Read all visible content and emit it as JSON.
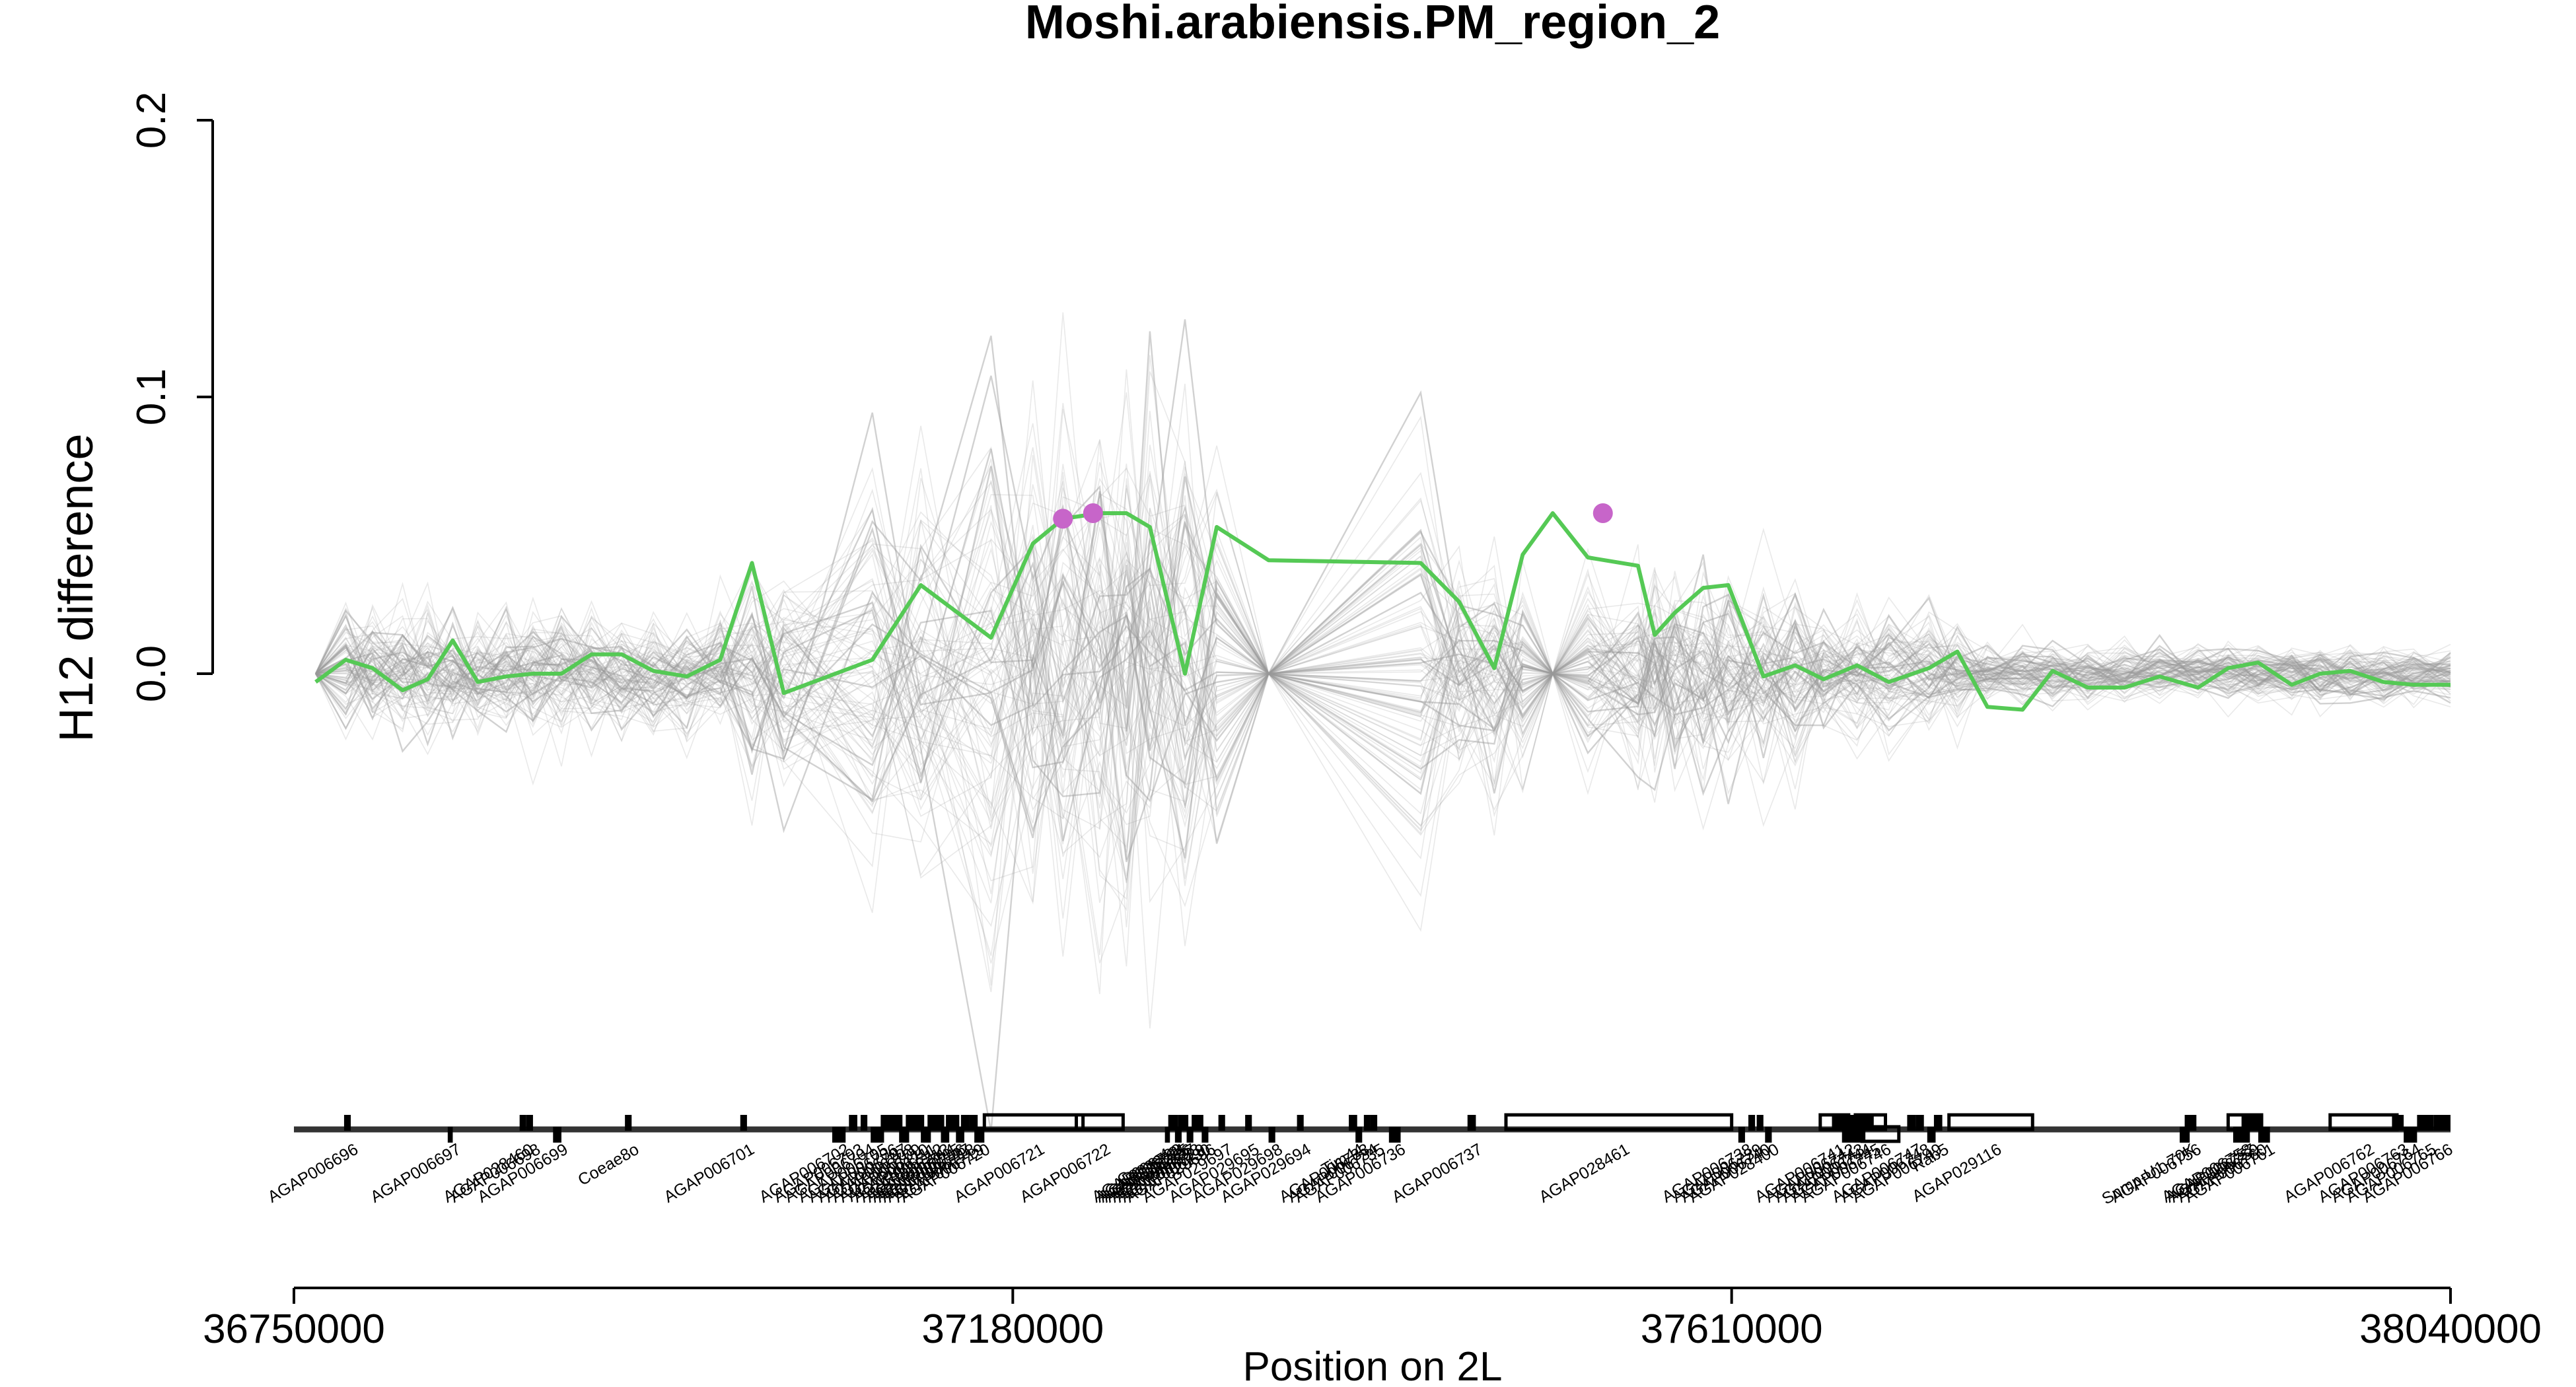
{
  "chart_data": {
    "type": "line",
    "title": "Moshi.arabiensis.PM_region_2",
    "xlabel": "Position on 2L",
    "ylabel": "H12 difference",
    "xlim": [
      36750000,
      38040000
    ],
    "ylim": [
      -0.13,
      0.2
    ],
    "x_ticks": [
      "36750000",
      "37180000",
      "37610000",
      "38040000"
    ],
    "y_ticks": [
      "0.0",
      "0.1",
      "0.2"
    ],
    "grid": false,
    "legend": "none",
    "colors": {
      "observed_line": "#55c955",
      "permutation_lines": "#9a9a9a",
      "peak_points": "#c765c9",
      "axis": "#000000",
      "gene_track": "#000000"
    },
    "series": [
      {
        "x": [
          36763000,
          36781000,
          36797000,
          36815000,
          36830000,
          36845000,
          36860000,
          36877000,
          36893000,
          36910000,
          36928000,
          36946000,
          36965000,
          36985000,
          37005000,
          37024000,
          37043000,
          37096000,
          37125000,
          37167000,
          37192000,
          37210000,
          37232000,
          37248000,
          37262000,
          37283000,
          37302000,
          37333000,
          37424000,
          37447000,
          37468000,
          37485000,
          37503000,
          37524000,
          37554000,
          37564000,
          37576000,
          37593000,
          37608000,
          37629000,
          37648000,
          37665000,
          37685000,
          37704000,
          37728000,
          37745000,
          37763000,
          37784000,
          37802000,
          37823000,
          37845000,
          37866000,
          37889000,
          37907000,
          37925000,
          37945000,
          37962000,
          37980000,
          38000000,
          38018000,
          38040000
        ],
        "values": [
          -0.003,
          0.005,
          0.002,
          -0.006,
          -0.002,
          0.012,
          -0.003,
          -0.001,
          0.0,
          0.0,
          0.007,
          0.007,
          0.001,
          -0.001,
          0.005,
          0.04,
          -0.007,
          0.005,
          0.032,
          0.013,
          0.047,
          0.056,
          0.058,
          0.058,
          0.053,
          0.0,
          0.053,
          0.041,
          0.04,
          0.026,
          0.002,
          0.043,
          0.058,
          0.042,
          0.039,
          0.014,
          0.022,
          0.031,
          0.032,
          -0.001,
          0.003,
          -0.002,
          0.003,
          -0.003,
          0.002,
          0.008,
          -0.012,
          -0.013,
          0.001,
          -0.005,
          -0.005,
          -0.001,
          -0.005,
          0.002,
          0.004,
          -0.004,
          0.0,
          0.001,
          -0.003,
          -0.004,
          -0.004
        ]
      }
    ],
    "peaks": [
      {
        "x": 37210000,
        "y": 0.056
      },
      {
        "x": 37228000,
        "y": 0.058
      },
      {
        "x": 37533000,
        "y": 0.058
      }
    ],
    "permutations": {
      "count": 90,
      "pinch_points_x": [
        36763000,
        37072000,
        37148000,
        37333000,
        37503000,
        37752000
      ],
      "extrema_hint": {
        "min": -0.128,
        "max": 0.211
      }
    },
    "genes": [
      {
        "name": "AGAP006696",
        "start": 36780000,
        "end": 36784000
      },
      {
        "name": "AGAP006697",
        "start": 36842000,
        "end": 36845000
      },
      {
        "name": "AGAP028460",
        "start": 36885000,
        "end": 36889000
      },
      {
        "name": "AGAP006698",
        "start": 36889000,
        "end": 36893000
      },
      {
        "name": "AGAP006699",
        "start": 36905000,
        "end": 36910000
      },
      {
        "name": "Coeae8o",
        "start": 36948000,
        "end": 36952000
      },
      {
        "name": "AGAP006701",
        "start": 37017000,
        "end": 37021000
      },
      {
        "name": "AGAP006702",
        "start": 37072000,
        "end": 37080000
      },
      {
        "name": "AGAP006703",
        "start": 37082000,
        "end": 37087000
      },
      {
        "name": "AGAP006704",
        "start": 37089000,
        "end": 37093000
      },
      {
        "name": "AGAP006705",
        "start": 37095000,
        "end": 37103000
      },
      {
        "name": "AGAP006706",
        "start": 37101000,
        "end": 37109000
      },
      {
        "name": "AGAP006707",
        "start": 37107000,
        "end": 37114000
      },
      {
        "name": "AGAP006708",
        "start": 37112000,
        "end": 37118000
      },
      {
        "name": "AGAP006709",
        "start": 37116000,
        "end": 37122000
      },
      {
        "name": "AGAP006710",
        "start": 37120000,
        "end": 37127000
      },
      {
        "name": "AGAP006711",
        "start": 37125000,
        "end": 37131000
      },
      {
        "name": "AGAP006712",
        "start": 37129000,
        "end": 37135000
      },
      {
        "name": "AGAP006713",
        "start": 37133000,
        "end": 37139000
      },
      {
        "name": "AGAP006714",
        "start": 37137000,
        "end": 37142000
      },
      {
        "name": "AGAP006715",
        "start": 37140000,
        "end": 37145000
      },
      {
        "name": "AGAP006716",
        "start": 37143000,
        "end": 37148000
      },
      {
        "name": "AGAP006717",
        "start": 37146000,
        "end": 37151000
      },
      {
        "name": "AGAP006718",
        "start": 37149000,
        "end": 37154000
      },
      {
        "name": "AGAP006719",
        "start": 37154000,
        "end": 37159000
      },
      {
        "name": "AGAP006720",
        "start": 37157000,
        "end": 37163000
      },
      {
        "name": "AGAP006721",
        "start": 37163000,
        "end": 37222000
      },
      {
        "name": "AGAP006722",
        "start": 37218000,
        "end": 37246000
      },
      {
        "name": "Coeae4o",
        "start": 37271000,
        "end": 37274000
      },
      {
        "name": "AGAP006723",
        "start": 37273000,
        "end": 37277000
      },
      {
        "name": "AGAP006724",
        "start": 37275000,
        "end": 37279000
      },
      {
        "name": "AGAP006725",
        "start": 37277000,
        "end": 37281000
      },
      {
        "name": "AGAP006726",
        "start": 37279000,
        "end": 37283000
      },
      {
        "name": "AGAP006727",
        "start": 37281000,
        "end": 37285000
      },
      {
        "name": "AGAP006728",
        "start": 37284000,
        "end": 37288000
      },
      {
        "name": "AGAP006729",
        "start": 37287000,
        "end": 37291000
      },
      {
        "name": "AGAP006730",
        "start": 37290000,
        "end": 37294000
      },
      {
        "name": "AGAP029696",
        "start": 37293000,
        "end": 37297000
      },
      {
        "name": "AGAP029697",
        "start": 37303000,
        "end": 37307000
      },
      {
        "name": "AGAP029695",
        "start": 37319000,
        "end": 37323000
      },
      {
        "name": "AGAP029698",
        "start": 37333000,
        "end": 37337000
      },
      {
        "name": "AGAP029694",
        "start": 37350000,
        "end": 37354000
      },
      {
        "name": "Tim44",
        "start": 37381000,
        "end": 37386000
      },
      {
        "name": "AGAP006733",
        "start": 37385000,
        "end": 37389000
      },
      {
        "name": "AGAP006734",
        "start": 37390000,
        "end": 37394000
      },
      {
        "name": "AGAP006735",
        "start": 37394000,
        "end": 37398000
      },
      {
        "name": "AGAP006736",
        "start": 37405000,
        "end": 37412000
      },
      {
        "name": "AGAP006737",
        "start": 37452000,
        "end": 37457000
      },
      {
        "name": "AGAP028461",
        "start": 37475000,
        "end": 37610000
      },
      {
        "name": "AGAP006738",
        "start": 37614000,
        "end": 37618000
      },
      {
        "name": "AGAP006739",
        "start": 37620000,
        "end": 37624000
      },
      {
        "name": "AGAP006740",
        "start": 37625000,
        "end": 37629000
      },
      {
        "name": "AGAP028400",
        "start": 37630000,
        "end": 37634000
      },
      {
        "name": "AGAP006741",
        "start": 37663000,
        "end": 37680000
      },
      {
        "name": "AGAP006742",
        "start": 37670000,
        "end": 37685000
      },
      {
        "name": "AGAP006743",
        "start": 37676000,
        "end": 37690000
      },
      {
        "name": "AGAP006744",
        "start": 37680000,
        "end": 37695000
      },
      {
        "name": "AGAP006745",
        "start": 37684000,
        "end": 37702000
      },
      {
        "name": "AGAP006746",
        "start": 37688000,
        "end": 37710000
      },
      {
        "name": "AGAP006747",
        "start": 37715000,
        "end": 37720000
      },
      {
        "name": "AGAP006748",
        "start": 37720000,
        "end": 37725000
      },
      {
        "name": "AGAP006749",
        "start": 37727000,
        "end": 37732000
      },
      {
        "name": "Rab5",
        "start": 37731000,
        "end": 37736000
      },
      {
        "name": "AGAP029116",
        "start": 37740000,
        "end": 37790000
      },
      {
        "name": "Snmp-U1-70K",
        "start": 37878000,
        "end": 37884000
      },
      {
        "name": "AGAP006756",
        "start": 37881000,
        "end": 37888000
      },
      {
        "name": "AGAP006757",
        "start": 37907000,
        "end": 37927000
      },
      {
        "name": "AGAP006758",
        "start": 37910000,
        "end": 37920000
      },
      {
        "name": "AGAP006759",
        "start": 37915000,
        "end": 37924000
      },
      {
        "name": "AGAP006760",
        "start": 37920000,
        "end": 37928000
      },
      {
        "name": "AGAP006761",
        "start": 37925000,
        "end": 37932000
      },
      {
        "name": "AGAP006762",
        "start": 37968000,
        "end": 38008000
      },
      {
        "name": "AGAP006763",
        "start": 38005000,
        "end": 38012000
      },
      {
        "name": "AGAP006764",
        "start": 38012000,
        "end": 38020000
      },
      {
        "name": "AGAP006765",
        "start": 38020000,
        "end": 38030000
      },
      {
        "name": "AGAP006766",
        "start": 38030000,
        "end": 38040000
      }
    ]
  }
}
